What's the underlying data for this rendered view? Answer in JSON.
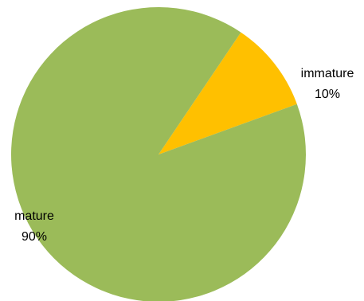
{
  "chart_data": {
    "type": "pie",
    "title": "",
    "categories": [
      "immature",
      "mature"
    ],
    "values": [
      10,
      90
    ],
    "value_labels": [
      "10%",
      "90%"
    ],
    "colors": [
      "#FFC000",
      "#9BBB59"
    ],
    "start_angle_deg": 34,
    "direction": "clockwise",
    "legend": "none",
    "data_labels": "outside-category-and-percent"
  }
}
